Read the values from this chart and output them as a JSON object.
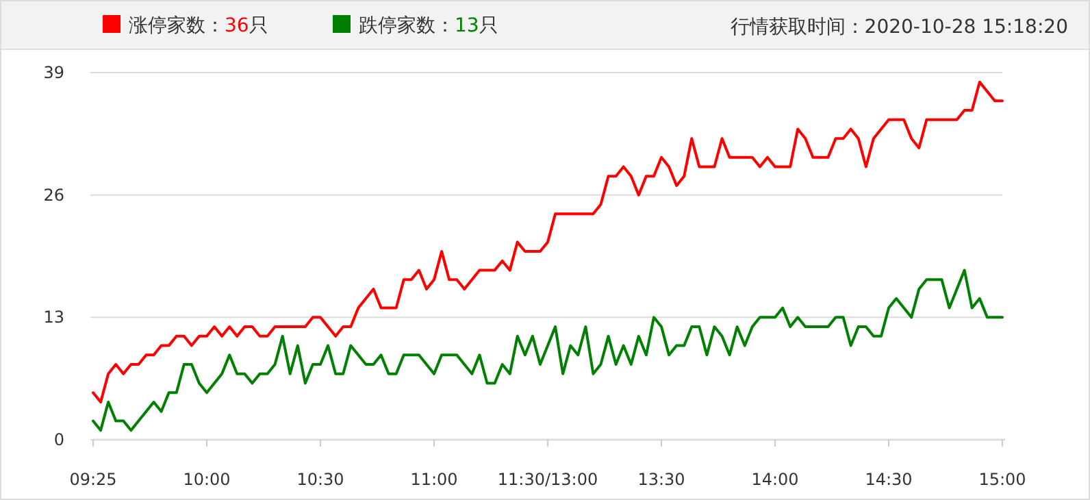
{
  "chart_data": {
    "type": "line",
    "title": "行情获取时间：2020-10-28 15:18:20",
    "legend": "top",
    "grid": "y",
    "marker": "none",
    "line_style": "solid",
    "categories": [
      "09:25",
      null,
      null,
      null,
      null,
      null,
      null,
      null,
      null,
      null,
      null,
      null,
      null,
      null,
      null,
      "10:00",
      null,
      null,
      null,
      null,
      null,
      null,
      null,
      null,
      null,
      null,
      null,
      null,
      null,
      null,
      "10:30",
      null,
      null,
      null,
      null,
      null,
      null,
      null,
      null,
      null,
      null,
      null,
      null,
      null,
      null,
      "11:00",
      null,
      null,
      null,
      null,
      null,
      null,
      null,
      null,
      null,
      null,
      null,
      null,
      null,
      null,
      "11:30/13:00",
      null,
      null,
      null,
      null,
      null,
      null,
      null,
      null,
      null,
      null,
      null,
      null,
      null,
      null,
      "13:30",
      null,
      null,
      null,
      null,
      null,
      null,
      null,
      null,
      null,
      null,
      null,
      null,
      null,
      null,
      "14:00",
      null,
      null,
      null,
      null,
      null,
      null,
      null,
      null,
      null,
      null,
      null,
      null,
      null,
      null,
      "14:30",
      null,
      null,
      null,
      null,
      null,
      null,
      null,
      null,
      null,
      null,
      null,
      null,
      null,
      null,
      "15:00"
    ],
    "ylim": [
      0,
      39
    ],
    "yticks": [
      0,
      13,
      26,
      39
    ],
    "series": [
      {
        "name": "涨停家数：36只",
        "color": "#ff0000",
        "values": [
          5,
          4,
          7,
          8,
          7,
          8,
          8,
          9,
          9,
          10,
          10,
          11,
          11,
          10,
          11,
          11,
          12,
          11,
          12,
          11,
          12,
          12,
          11,
          11,
          12,
          12,
          12,
          12,
          12,
          13,
          13,
          12,
          11,
          12,
          12,
          14,
          15,
          16,
          14,
          14,
          14,
          17,
          17,
          18,
          16,
          17,
          20,
          17,
          17,
          16,
          17,
          18,
          18,
          18,
          19,
          18,
          21,
          20,
          20,
          20,
          21,
          24,
          24,
          24,
          24,
          24,
          24,
          25,
          28,
          28,
          29,
          28,
          26,
          28,
          28,
          30,
          29,
          27,
          28,
          32,
          29,
          29,
          29,
          32,
          30,
          30,
          30,
          30,
          29,
          30,
          29,
          29,
          29,
          33,
          32,
          30,
          30,
          30,
          32,
          32,
          33,
          32,
          29,
          32,
          33,
          34,
          34,
          34,
          32,
          31,
          34,
          34,
          34,
          34,
          34,
          35,
          35,
          38,
          37,
          36,
          36
        ]
      },
      {
        "name": "跌停家数：13只",
        "color": "#008000",
        "values": [
          2,
          1,
          4,
          2,
          2,
          1,
          2,
          3,
          4,
          3,
          5,
          5,
          8,
          8,
          6,
          5,
          6,
          7,
          9,
          7,
          7,
          6,
          7,
          7,
          8,
          11,
          7,
          10,
          6,
          8,
          8,
          10,
          7,
          7,
          10,
          9,
          8,
          8,
          9,
          7,
          7,
          9,
          9,
          9,
          8,
          7,
          9,
          9,
          9,
          8,
          7,
          9,
          6,
          6,
          8,
          7,
          11,
          9,
          11,
          8,
          10,
          12,
          7,
          10,
          9,
          12,
          7,
          8,
          11,
          8,
          10,
          8,
          11,
          9,
          13,
          12,
          9,
          10,
          10,
          12,
          12,
          9,
          12,
          11,
          9,
          12,
          10,
          12,
          13,
          13,
          13,
          14,
          12,
          13,
          12,
          12,
          12,
          12,
          13,
          13,
          10,
          12,
          12,
          11,
          11,
          14,
          15,
          14,
          13,
          16,
          17,
          17,
          17,
          14,
          16,
          18,
          14,
          15,
          13,
          13,
          13
        ]
      }
    ]
  }
}
